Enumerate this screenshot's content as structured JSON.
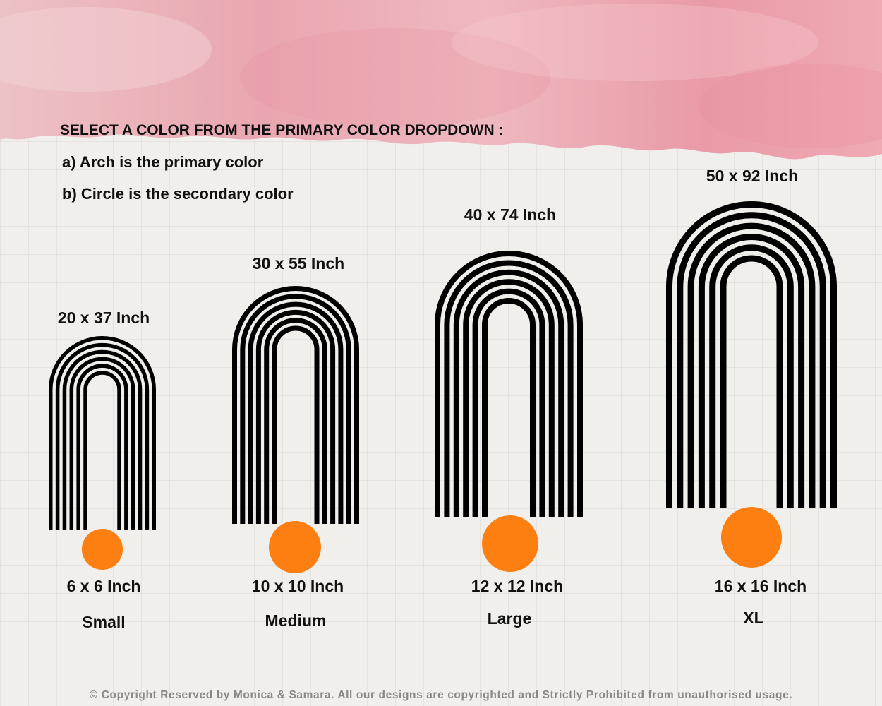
{
  "instructions": {
    "heading": "SELECT A COLOR FROM THE  PRIMARY COLOR DROPDOWN :",
    "line_a": "a) Arch is the primary color",
    "line_b": "b) Circle is the secondary color"
  },
  "products": [
    {
      "arch_size": "20 x 37 Inch",
      "circle_size": "6 x 6 Inch",
      "size_name": "Small"
    },
    {
      "arch_size": "30 x 55 Inch",
      "circle_size": "10 x 10 Inch",
      "size_name": "Medium"
    },
    {
      "arch_size": "40 x 74 Inch",
      "circle_size": "12 x 12 Inch",
      "size_name": "Large"
    },
    {
      "arch_size": "50 x 92 Inch",
      "circle_size": "16 x 16 Inch",
      "size_name": "XL"
    }
  ],
  "colors": {
    "arch": "#000000",
    "circle": "#fd7f12",
    "banner": "#eea2ae"
  },
  "footer": "© Copyright Reserved by Monica & Samara. All our designs are copyrighted and Strictly Prohibited from unauthorised usage."
}
